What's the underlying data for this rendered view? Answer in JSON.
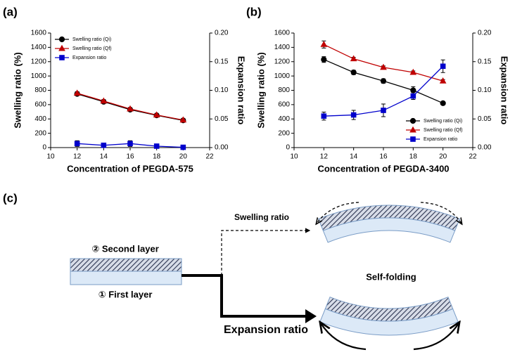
{
  "chart_data": [
    {
      "type": "line",
      "panel": "(a)",
      "xlabel": "Concentration of PEGDA-575",
      "ylabel": "Swelling ratio (%)",
      "y2label": "Expansion ratio",
      "x": [
        12,
        14,
        16,
        18,
        20
      ],
      "xlim": [
        10,
        22
      ],
      "xticks": [
        10,
        12,
        14,
        16,
        18,
        20,
        22
      ],
      "ylim": [
        0,
        1600
      ],
      "yticks": [
        0,
        200,
        400,
        600,
        800,
        1000,
        1200,
        1400,
        1600
      ],
      "y2lim": [
        0,
        0.2
      ],
      "y2ticks": [
        {
          "value": 0,
          "label": "0.00"
        },
        0.05,
        {
          "value": 0.1,
          "label": "0.10"
        },
        0.15,
        {
          "value": 0.2,
          "label": "0.20"
        }
      ],
      "legend": "upper left",
      "series": [
        {
          "name": "Swelling ratio (Qi)",
          "color": "#000000",
          "marker": "circle",
          "values": [
            750,
            640,
            530,
            450,
            380
          ],
          "errors": [
            20,
            20,
            20,
            15,
            15
          ]
        },
        {
          "name": "Swelling ratio (Qf)",
          "color": "#c00000",
          "marker": "triangle",
          "values": [
            760,
            650,
            540,
            455,
            385
          ],
          "errors": [
            20,
            20,
            20,
            15,
            15
          ]
        },
        {
          "name": "Expansion ratio",
          "color": "#0000cc",
          "marker": "square",
          "axis": "y2",
          "values": [
            0.007,
            0.004,
            0.007,
            0.0025,
            0.0005
          ],
          "errors": [
            0.005,
            0.003,
            0.005,
            0.002,
            0.001
          ]
        }
      ]
    },
    {
      "type": "line",
      "panel": "(b)",
      "xlabel": "Concentration of PEGDA-3400",
      "ylabel": "Swelling ratio (%)",
      "y2label": "Expansion ratio",
      "x": [
        12,
        14,
        16,
        18,
        20
      ],
      "xlim": [
        10,
        22
      ],
      "xticks": [
        10,
        12,
        14,
        16,
        18,
        20,
        22
      ],
      "ylim": [
        0,
        1600
      ],
      "yticks": [
        0,
        200,
        400,
        600,
        800,
        1000,
        1200,
        1400,
        1600
      ],
      "y2lim": [
        0,
        0.2
      ],
      "y2ticks": [
        {
          "value": 0,
          "label": "0.00"
        },
        0.05,
        {
          "value": 0.1,
          "label": "0.10"
        },
        0.15,
        {
          "value": 0.2,
          "label": "0.20"
        }
      ],
      "legend": "lower right",
      "series": [
        {
          "name": "Swelling ratio (Qi)",
          "color": "#000000",
          "marker": "circle",
          "values": [
            1230,
            1050,
            930,
            800,
            620
          ],
          "errors": [
            40,
            30,
            30,
            50,
            20
          ]
        },
        {
          "name": "Swelling ratio (Qf)",
          "color": "#c00000",
          "marker": "triangle",
          "values": [
            1440,
            1240,
            1120,
            1050,
            930
          ],
          "errors": [
            50,
            20,
            20,
            20,
            20
          ]
        },
        {
          "name": "Expansion ratio",
          "color": "#0000cc",
          "marker": "square",
          "axis": "y2",
          "values": [
            0.055,
            0.057,
            0.065,
            0.09,
            0.142
          ],
          "errors": [
            0.007,
            0.008,
            0.011,
            0.006,
            0.011
          ]
        }
      ]
    }
  ],
  "diagram": {
    "panel": "(c)",
    "second_layer": "② Second layer",
    "first_layer": "① First layer",
    "swelling": "Swelling ratio",
    "self_folding": "Self-folding",
    "expansion": "Expansion ratio"
  }
}
